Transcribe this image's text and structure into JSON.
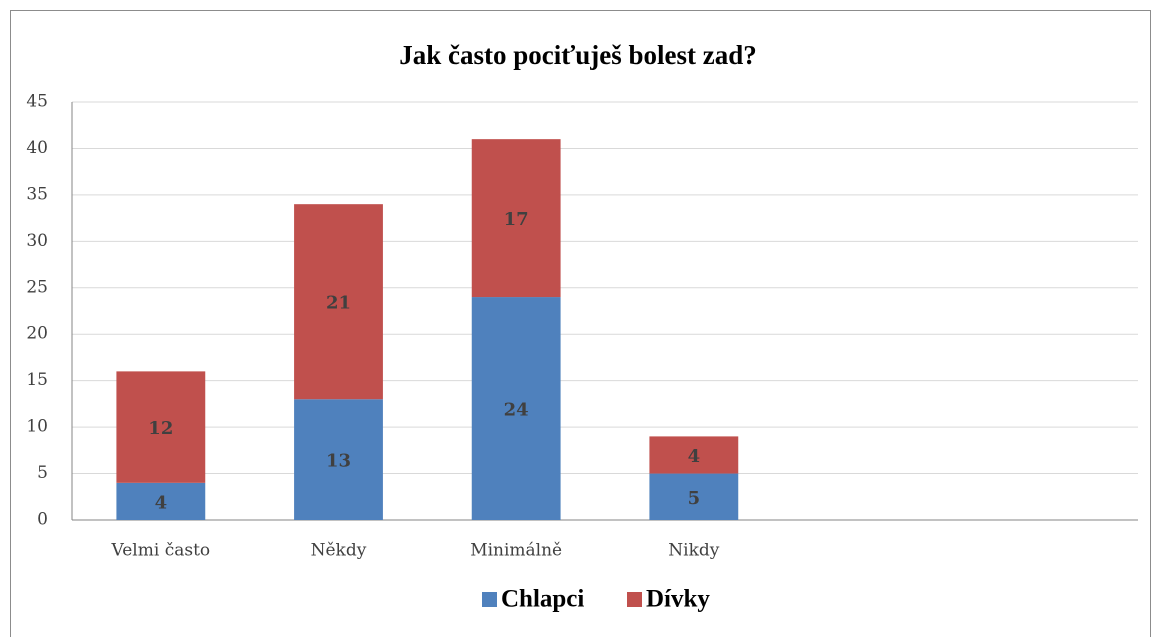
{
  "chart_data": {
    "type": "stacked_bar",
    "title": "Jak často pociťuješ bolest zad?",
    "categories": [
      "Velmi často",
      "Někdy",
      "Minimálně",
      "Nikdy",
      null,
      null
    ],
    "series": [
      {
        "name": "Chlapci",
        "color": "#4f81bd",
        "values": [
          4,
          13,
          24,
          5,
          null,
          null
        ]
      },
      {
        "name": "Dívky",
        "color": "#c0504d",
        "values": [
          12,
          21,
          17,
          4,
          null,
          null
        ]
      }
    ],
    "ylim": [
      0,
      45
    ],
    "yticks": [
      0,
      5,
      10,
      15,
      20,
      25,
      30,
      35,
      40,
      45
    ],
    "grid": true,
    "legend": "bottom"
  }
}
